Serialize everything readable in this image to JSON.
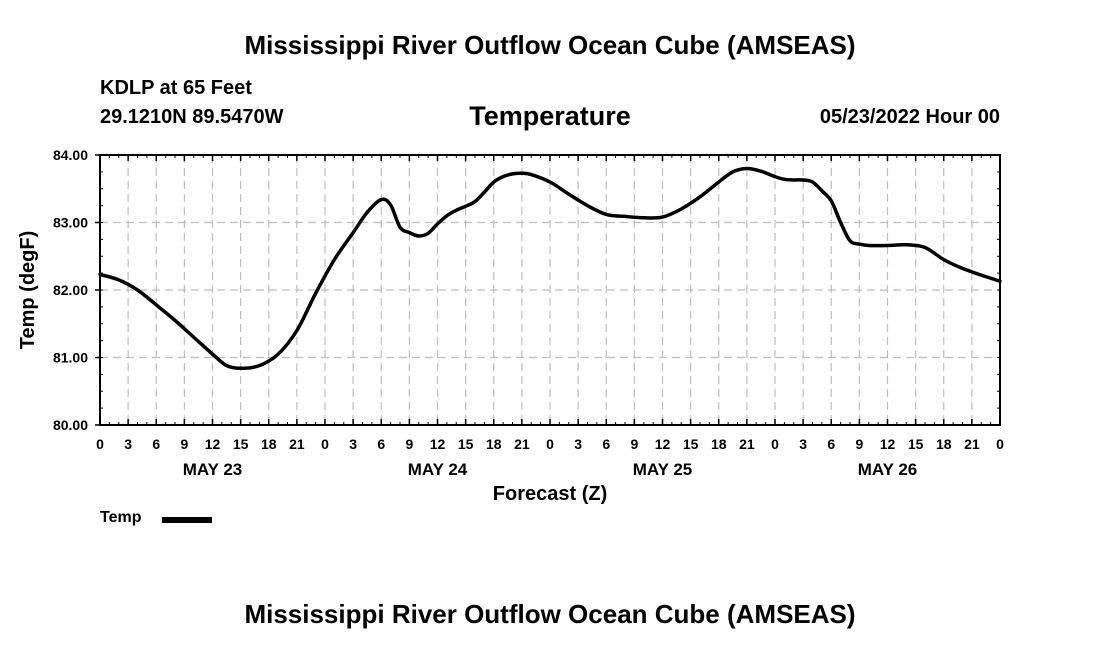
{
  "header": {
    "title": "Mississippi River Outflow Ocean Cube (AMSEAS)",
    "station": "KDLP at 65 Feet",
    "coordinates": "29.1210N  89.5470W",
    "run_time": "05/23/2022 Hour 00"
  },
  "footer": {
    "title": "Mississippi River Outflow Ocean Cube (AMSEAS)"
  },
  "chart_data": {
    "type": "line",
    "title": "Temperature",
    "xlabel": "Forecast (Z)",
    "ylabel": "Temp (degF)",
    "ylim": [
      80,
      84
    ],
    "yticks": [
      "80.00",
      "81.00",
      "82.00",
      "83.00",
      "84.00"
    ],
    "xlim_hours": [
      0,
      96
    ],
    "xtick_labels": [
      "0",
      "3",
      "6",
      "9",
      "12",
      "15",
      "18",
      "21",
      "0",
      "3",
      "6",
      "9",
      "12",
      "15",
      "18",
      "21",
      "0",
      "3",
      "6",
      "9",
      "12",
      "15",
      "18",
      "21",
      "0",
      "3",
      "6",
      "9",
      "12",
      "15",
      "18",
      "21",
      "0"
    ],
    "day_labels": [
      {
        "label": "MAY 23",
        "hour": 12
      },
      {
        "label": "MAY 24",
        "hour": 36
      },
      {
        "label": "MAY 25",
        "hour": 60
      },
      {
        "label": "MAY 26",
        "hour": 84
      }
    ],
    "grid": true,
    "legend": {
      "position": "bottom-left"
    },
    "series": [
      {
        "name": "Temp",
        "color": "#000000",
        "x": [
          0,
          2,
          4,
          6,
          8,
          10,
          12,
          13.5,
          15,
          17,
          19,
          21,
          23,
          25,
          27,
          28.5,
          30,
          31,
          32,
          33,
          34,
          35,
          36,
          37,
          38,
          39,
          40,
          41,
          42,
          43,
          44,
          45,
          46,
          48,
          50,
          52,
          54,
          56,
          58,
          60,
          62,
          64,
          66,
          67.5,
          69,
          70.5,
          72,
          73,
          74,
          75,
          76,
          77,
          78,
          79,
          80,
          81,
          82,
          84,
          86,
          88,
          90,
          92,
          94,
          96
        ],
        "values": [
          82.23,
          82.15,
          82.0,
          81.78,
          81.55,
          81.3,
          81.05,
          80.88,
          80.84,
          80.88,
          81.05,
          81.4,
          81.95,
          82.45,
          82.85,
          83.15,
          83.34,
          83.26,
          82.93,
          82.85,
          82.8,
          82.84,
          82.98,
          83.1,
          83.18,
          83.24,
          83.31,
          83.45,
          83.6,
          83.68,
          83.72,
          83.73,
          83.71,
          83.6,
          83.42,
          83.25,
          83.12,
          83.09,
          83.07,
          83.08,
          83.2,
          83.38,
          83.6,
          83.75,
          83.8,
          83.76,
          83.68,
          83.64,
          83.63,
          83.63,
          83.6,
          83.47,
          83.32,
          83.0,
          82.73,
          82.68,
          82.66,
          82.66,
          82.67,
          82.63,
          82.45,
          82.32,
          82.22,
          82.13
        ]
      }
    ]
  }
}
